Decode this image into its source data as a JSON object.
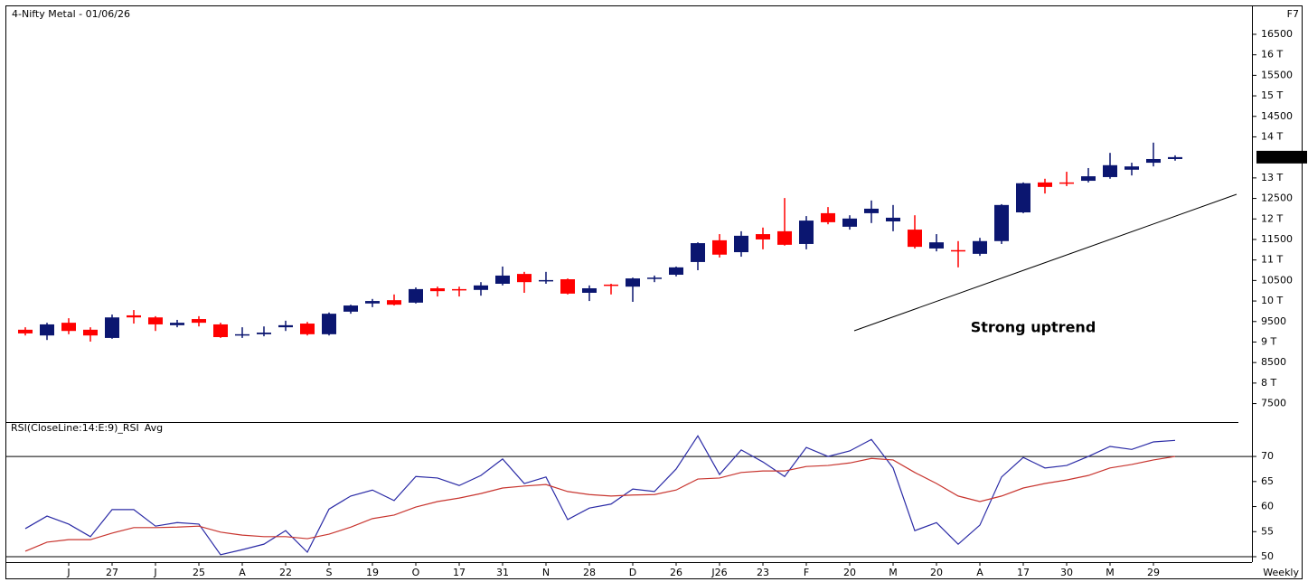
{
  "chart_data": [
    {
      "type": "candlestick",
      "title": "4-Nifty Metal - 01/06/26",
      "corner_label": "F7",
      "categories": [
        null,
        null,
        "J",
        null,
        "27",
        null,
        "J",
        null,
        "25",
        null,
        "A",
        null,
        "22",
        null,
        "S",
        null,
        "19",
        null,
        "O",
        null,
        "17",
        null,
        "31",
        null,
        "N",
        null,
        "28",
        null,
        "D",
        null,
        "26",
        null,
        "J26",
        null,
        "23",
        null,
        "F",
        null,
        "20",
        null,
        "M",
        null,
        "20",
        null,
        "A",
        null,
        "17",
        null,
        "30",
        null,
        "M",
        null,
        "29",
        null
      ],
      "open": [
        9300,
        9160,
        9470,
        9300,
        9100,
        9650,
        9600,
        9410,
        9560,
        9430,
        9160,
        9190,
        9360,
        9450,
        9190,
        9740,
        9940,
        10020,
        9960,
        10310,
        10290,
        10270,
        10420,
        10660,
        10490,
        10530,
        10200,
        10400,
        10350,
        10550,
        10640,
        10950,
        11480,
        11190,
        11630,
        11700,
        11390,
        12140,
        11810,
        12140,
        11940,
        11740,
        11280,
        11240,
        11150,
        11460,
        12160,
        12890,
        12890,
        12930,
        13020,
        13200,
        13370,
        13460
      ],
      "high": [
        9360,
        9470,
        9580,
        9360,
        9670,
        9780,
        9630,
        9540,
        9630,
        9470,
        9360,
        9380,
        9520,
        9490,
        9720,
        9910,
        10050,
        10160,
        10330,
        10350,
        10350,
        10460,
        10840,
        10710,
        10710,
        10550,
        10380,
        10420,
        10570,
        10620,
        10840,
        11430,
        11630,
        11700,
        11790,
        12510,
        12070,
        12290,
        12090,
        12450,
        12340,
        12090,
        11630,
        11460,
        11540,
        12360,
        12890,
        12980,
        13150,
        13240,
        13610,
        13370,
        13860,
        13550
      ],
      "low": [
        9160,
        9050,
        9190,
        9010,
        9080,
        9450,
        9270,
        9360,
        9380,
        9100,
        9100,
        9140,
        9270,
        9160,
        9160,
        9690,
        9850,
        9890,
        9940,
        10110,
        10110,
        10130,
        10380,
        10200,
        10420,
        10160,
        10000,
        10160,
        9980,
        10460,
        10600,
        10750,
        11060,
        11080,
        11260,
        11350,
        11260,
        11870,
        11740,
        11900,
        11700,
        11280,
        11210,
        10820,
        11100,
        11390,
        12140,
        12620,
        12800,
        12890,
        12980,
        13060,
        13280,
        13420
      ],
      "close": [
        9210,
        9430,
        9270,
        9160,
        9600,
        9600,
        9430,
        9470,
        9470,
        9120,
        9190,
        9230,
        9410,
        9190,
        9690,
        9890,
        10000,
        9910,
        10290,
        10240,
        10270,
        10380,
        10620,
        10460,
        10510,
        10180,
        10310,
        10380,
        10550,
        10570,
        10820,
        11410,
        11130,
        11590,
        11500,
        11370,
        11960,
        11920,
        12010,
        12250,
        12030,
        11320,
        11430,
        11210,
        11460,
        12340,
        12870,
        12780,
        12870,
        13040,
        13310,
        13280,
        13460,
        13506.5
      ],
      "up_color": "#0b1670",
      "down_color": "#ff0000",
      "ylim": [
        7050,
        17160
      ],
      "yticks": [
        16500,
        {
          "value": 16000,
          "label": "16 T"
        },
        15500,
        {
          "value": 15000,
          "label": "15 T"
        },
        14500,
        {
          "value": 14000,
          "label": "14 T"
        },
        {
          "value": 13000,
          "label": "13 T"
        },
        12500,
        {
          "value": 12000,
          "label": "12 T"
        },
        11500,
        {
          "value": 11000,
          "label": "11 T"
        },
        10500,
        {
          "value": 10000,
          "label": "10 T"
        },
        9500,
        {
          "value": 9000,
          "label": "9 T"
        },
        8500,
        {
          "value": 8000,
          "label": "8 T"
        },
        7500
      ],
      "last_price": 13506.5,
      "annotation": "Strong uptrend"
    },
    {
      "type": "line",
      "xlabel": "Weekly",
      "series": [
        {
          "name": "RSI(CloseLine:14:E:9)_RSI",
          "color": "#2b2ba6",
          "values": [
            55.6,
            58.1,
            56.5,
            54.0,
            59.4,
            59.4,
            56.1,
            56.8,
            56.5,
            50.4,
            51.4,
            52.5,
            55.2,
            50.9,
            59.5,
            62.1,
            63.3,
            61.2,
            66.0,
            65.7,
            64.2,
            66.2,
            69.5,
            64.6,
            65.9,
            57.4,
            59.7,
            60.5,
            63.5,
            63.0,
            67.5,
            74.1,
            66.4,
            71.3,
            68.9,
            66.0,
            71.8,
            70.0,
            71.1,
            73.4,
            67.7,
            55.2,
            56.8,
            52.5,
            56.3,
            65.9,
            69.8,
            67.7,
            68.2,
            70.0,
            72.0,
            71.4,
            72.9,
            73.2
          ]
        },
        {
          "name": "Avg",
          "color": "#c8352f",
          "values": [
            51.1,
            52.9,
            53.4,
            53.4,
            54.7,
            55.8,
            55.8,
            55.9,
            56.1,
            54.9,
            54.3,
            54.0,
            54.0,
            53.6,
            54.5,
            55.9,
            57.6,
            58.3,
            59.9,
            61.0,
            61.7,
            62.6,
            63.7,
            64.1,
            64.4,
            63.0,
            62.4,
            62.1,
            62.3,
            62.4,
            63.3,
            65.5,
            65.7,
            66.8,
            67.1,
            67.1,
            68.0,
            68.2,
            68.7,
            69.6,
            69.3,
            66.8,
            64.6,
            62.1,
            61.0,
            62.1,
            63.7,
            64.6,
            65.3,
            66.2,
            67.7,
            68.4,
            69.3,
            70.0
          ]
        }
      ],
      "ylim": [
        49.1,
        74.7
      ],
      "yticks": [
        70,
        65,
        60,
        55,
        50
      ],
      "levels": [
        70,
        50
      ]
    }
  ]
}
